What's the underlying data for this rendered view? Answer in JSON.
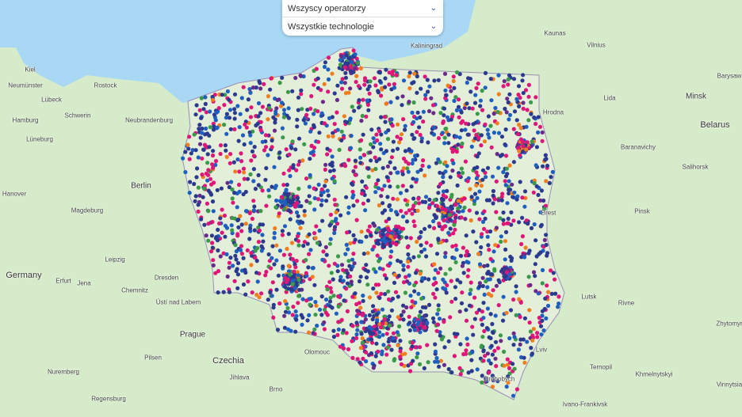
{
  "filters": {
    "operators": {
      "selected": "Wszyscy operatorzy"
    },
    "technologies": {
      "selected": "Wszystkie technologie"
    }
  },
  "map": {
    "colors": {
      "sea": "#a9d8f5",
      "land": "#d6ebc9",
      "forest": "#bfe0b0",
      "border": "#9a8fb8"
    },
    "marker_colors": [
      "#2b3a8f",
      "#e0157a",
      "#1f5fbf",
      "#3a9a4a",
      "#f07d1e",
      "#6a2a8a"
    ],
    "countries": [
      "Germany",
      "Czechia",
      "Belarus"
    ],
    "cities": [
      "Berlin",
      "Prague",
      "Minsk",
      "Vilnius",
      "Kaunas",
      "Kaliningrad",
      "Hamburg",
      "Kiel",
      "Rostock",
      "Lübeck",
      "Schwerin",
      "Neubrandenburg",
      "Neumünster",
      "Lüneburg",
      "Hanover",
      "Magdeburg",
      "Leipzig",
      "Dresden",
      "Erfurt",
      "Jena",
      "Chemnitz",
      "Ústí nad Labem",
      "Pilsen",
      "Jihlava",
      "Brno",
      "Nuremberg",
      "Regensburg",
      "Lviv",
      "Drohobych",
      "Ternopil",
      "Khmelnytskyi",
      "Rivne",
      "Lutsk",
      "Brest",
      "Pinsk",
      "Hrodna",
      "Lida",
      "Baranavichy",
      "Salihorsk",
      "Barysaw",
      "Zhytomyr",
      "Vinnytsia",
      "Ivano-Frankivsk",
      "Olomouc"
    ]
  }
}
